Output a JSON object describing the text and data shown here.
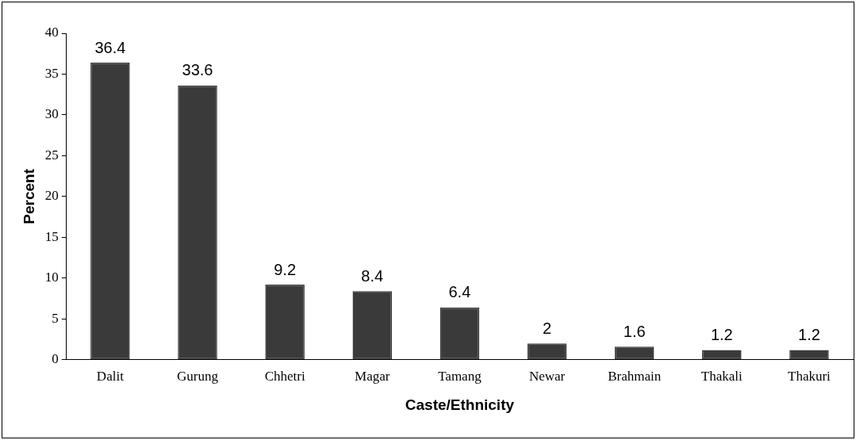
{
  "chart_data": {
    "type": "bar",
    "xlabel": "Caste/Ethnicity",
    "ylabel": "Percent",
    "categories": [
      "Dalit",
      "Gurung",
      "Chhetri",
      "Magar",
      "Tamang",
      "Newar",
      "Brahmain",
      "Thakali",
      "Thakuri"
    ],
    "values": [
      36.4,
      33.6,
      9.2,
      8.4,
      6.4,
      2,
      1.6,
      1.2,
      1.2
    ],
    "color": "#3a3a3a",
    "ylim": [
      0,
      40
    ],
    "yticks": [
      0,
      5,
      10,
      15,
      20,
      25,
      30,
      35,
      40
    ],
    "grid": false,
    "legend": false,
    "data_labels": true
  }
}
